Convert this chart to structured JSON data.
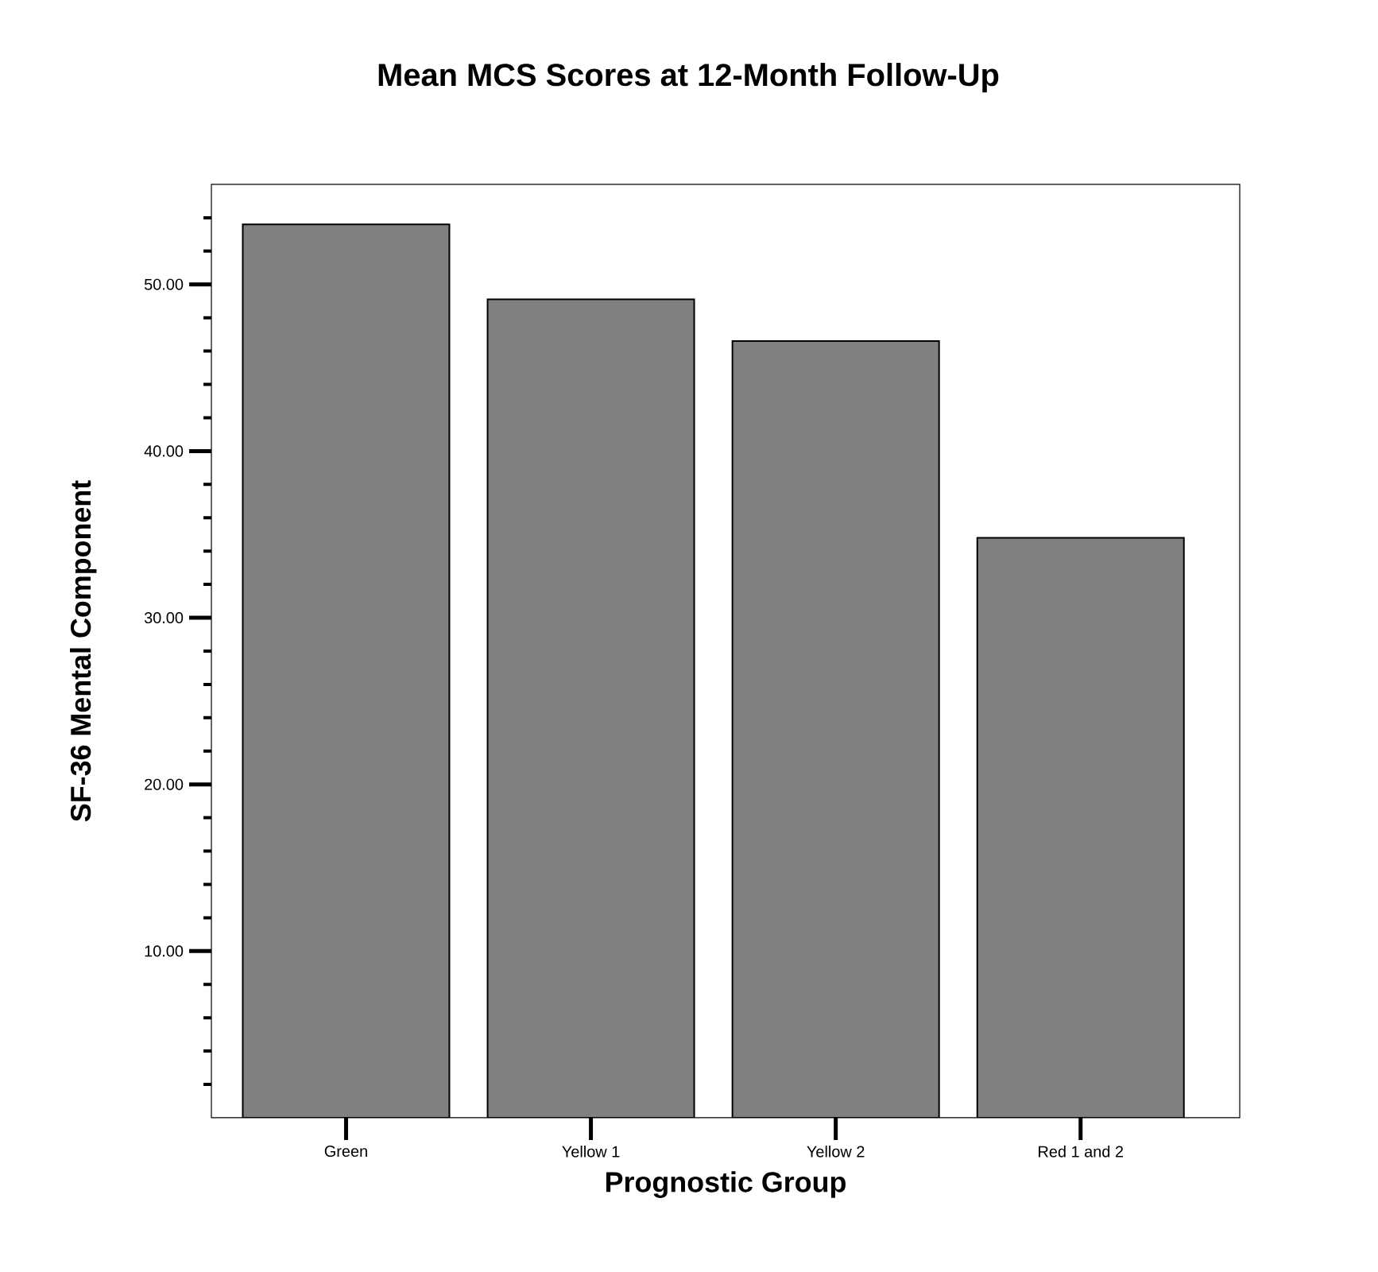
{
  "chart_data": {
    "type": "bar",
    "title": "Mean MCS Scores at 12-Month Follow-Up",
    "xlabel": "Prognostic Group",
    "ylabel": "SF-36 Mental Component",
    "categories": [
      "Green",
      "Yellow 1",
      "Yellow 2",
      "Red 1 and 2"
    ],
    "values": [
      53.6,
      49.1,
      46.6,
      34.8
    ],
    "color": "#808080",
    "ylim": [
      0,
      56
    ],
    "yticks": [
      {
        "value": 2,
        "label": null
      },
      {
        "value": 4,
        "label": null
      },
      {
        "value": 6,
        "label": null
      },
      {
        "value": 8,
        "label": null
      },
      {
        "value": 10,
        "label": "10.00"
      },
      {
        "value": 12,
        "label": null
      },
      {
        "value": 14,
        "label": null
      },
      {
        "value": 16,
        "label": null
      },
      {
        "value": 18,
        "label": null
      },
      {
        "value": 20,
        "label": "20.00"
      },
      {
        "value": 22,
        "label": null
      },
      {
        "value": 24,
        "label": null
      },
      {
        "value": 26,
        "label": null
      },
      {
        "value": 28,
        "label": null
      },
      {
        "value": 30,
        "label": "30.00"
      },
      {
        "value": 32,
        "label": null
      },
      {
        "value": 34,
        "label": null
      },
      {
        "value": 36,
        "label": null
      },
      {
        "value": 38,
        "label": null
      },
      {
        "value": 40,
        "label": "40.00"
      },
      {
        "value": 42,
        "label": null
      },
      {
        "value": 44,
        "label": null
      },
      {
        "value": 46,
        "label": null
      },
      {
        "value": 48,
        "label": null
      },
      {
        "value": 50,
        "label": "50.00"
      },
      {
        "value": 52,
        "label": null
      },
      {
        "value": 54,
        "label": null
      }
    ]
  }
}
